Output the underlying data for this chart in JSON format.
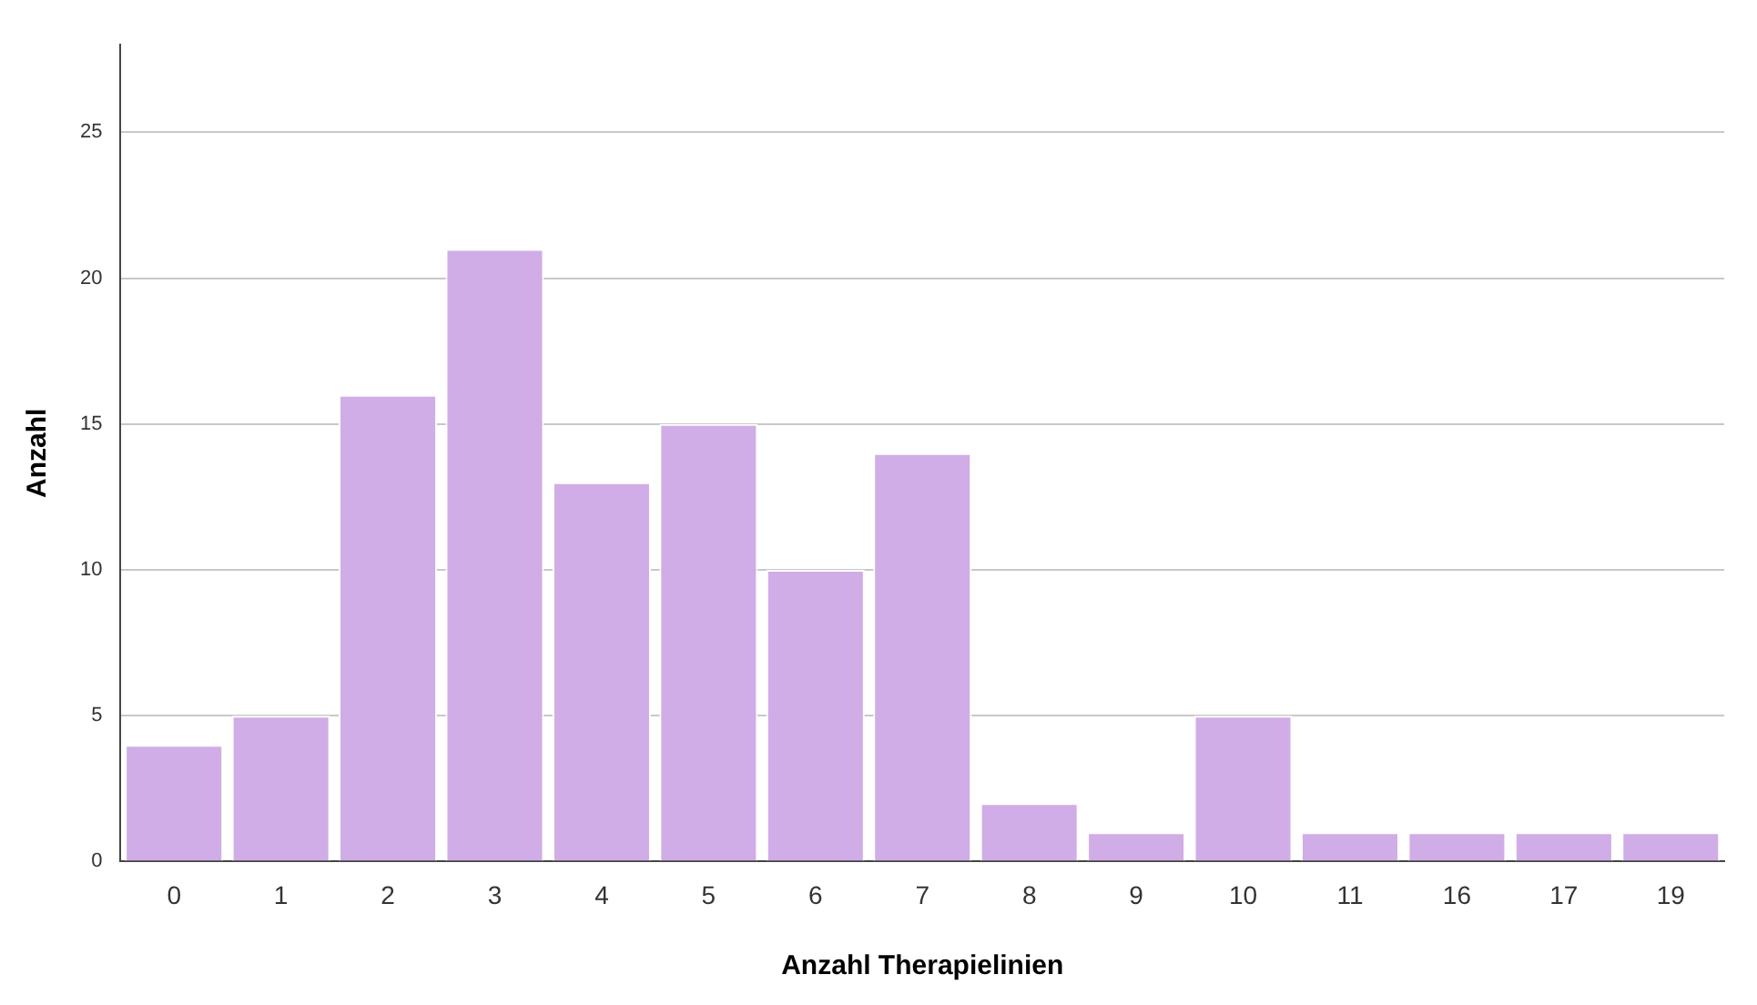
{
  "chart_data": {
    "type": "bar",
    "xlabel": "Anzahl Therapielinien",
    "ylabel": "Anzahl",
    "categories": [
      "0",
      "1",
      "2",
      "3",
      "4",
      "5",
      "6",
      "7",
      "8",
      "9",
      "10",
      "11",
      "16",
      "17",
      "19"
    ],
    "values": [
      4,
      5,
      16,
      21,
      13,
      15,
      10,
      14,
      2,
      1,
      5,
      1,
      1,
      1,
      1
    ],
    "color": "#d0ade6",
    "ylim": [
      0,
      28
    ],
    "yticks": [
      0,
      5,
      10,
      15,
      20,
      25
    ],
    "grid": "y",
    "legend": false
  }
}
